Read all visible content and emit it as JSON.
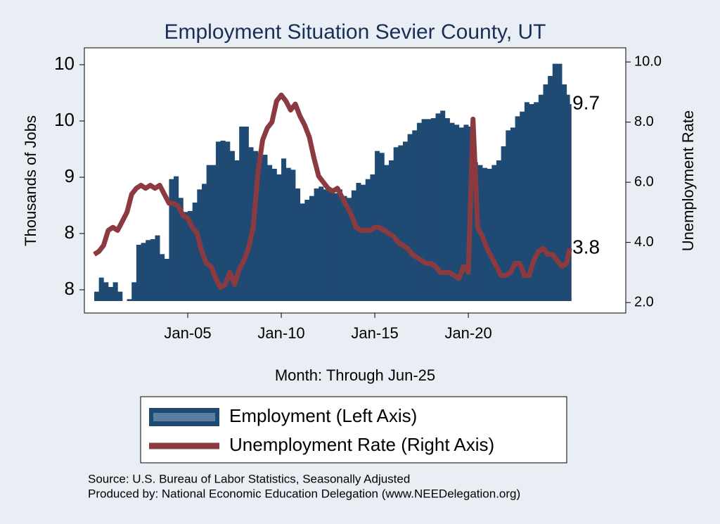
{
  "chart_data": {
    "type": "bar-line",
    "title": "Employment Situation Sevier  County, UT",
    "x_label": "Month: Through Jun-25",
    "y_label": "Thousands of Jobs",
    "y2_label": "Unemployment Rate",
    "notes": [
      "Source: U.S. Bureau of Labor Statistics, Seasonally Adjusted",
      "Produced by: National Economic Education Delegation (www.NEEDelegation.org)"
    ],
    "x": [
      "Jan-00",
      "Apr-00",
      "Jul-00",
      "Oct-00",
      "Jan-01",
      "Apr-01",
      "Jul-01",
      "Oct-01",
      "Jan-02",
      "Apr-02",
      "Jul-02",
      "Oct-02",
      "Jan-03",
      "Apr-03",
      "Jul-03",
      "Oct-03",
      "Jan-04",
      "Apr-04",
      "Jul-04",
      "Oct-04",
      "Jan-05",
      "Apr-05",
      "Jul-05",
      "Oct-05",
      "Jan-06",
      "Apr-06",
      "Jul-06",
      "Oct-06",
      "Jan-07",
      "Apr-07",
      "Jul-07",
      "Oct-07",
      "Jan-08",
      "Apr-08",
      "Jul-08",
      "Oct-08",
      "Jan-09",
      "Apr-09",
      "Jul-09",
      "Oct-09",
      "Jan-10",
      "Apr-10",
      "Jul-10",
      "Oct-10",
      "Jan-11",
      "Apr-11",
      "Jul-11",
      "Oct-11",
      "Jan-12",
      "Apr-12",
      "Jul-12",
      "Oct-12",
      "Jan-13",
      "Apr-13",
      "Jul-13",
      "Oct-13",
      "Jan-14",
      "Apr-14",
      "Jul-14",
      "Oct-14",
      "Jan-15",
      "Apr-15",
      "Jul-15",
      "Oct-15",
      "Jan-16",
      "Apr-16",
      "Jul-16",
      "Oct-16",
      "Jan-17",
      "Apr-17",
      "Jul-17",
      "Oct-17",
      "Jan-18",
      "Apr-18",
      "Jul-18",
      "Oct-18",
      "Jan-19",
      "Apr-19",
      "Jul-19",
      "Oct-19",
      "Jan-20",
      "Apr-20",
      "Jul-20",
      "Oct-20",
      "Jan-21",
      "Apr-21",
      "Jul-21",
      "Oct-21",
      "Jan-22",
      "Apr-22",
      "Jul-22",
      "Oct-22",
      "Jan-23",
      "Apr-23",
      "Jul-23",
      "Oct-23",
      "Jan-24",
      "Apr-24",
      "Jul-24",
      "Oct-24",
      "Jan-25",
      "Apr-25",
      "Jun-25"
    ],
    "xticks": [
      "Jan-05",
      "Jan-10",
      "Jan-15",
      "Jan-20"
    ],
    "ylim": [
      7.6,
      10.3
    ],
    "yticks": [
      {
        "value": 7.72,
        "label": "8"
      },
      {
        "value": 8.32,
        "label": "8"
      },
      {
        "value": 8.92,
        "label": "9"
      },
      {
        "value": 9.52,
        "label": "10"
      },
      {
        "value": 10.12,
        "label": "10"
      }
    ],
    "y2lim": [
      2.05,
      10.47
    ],
    "y2ticks": [
      {
        "value": 2,
        "label": "2.0"
      },
      {
        "value": 4,
        "label": "4.0"
      },
      {
        "value": 6,
        "label": "6.0"
      },
      {
        "value": 8,
        "label": "8.0"
      },
      {
        "value": 10,
        "label": "10.0"
      }
    ],
    "series": [
      {
        "name": "Employment (Left Axis)",
        "kind": "bar",
        "color": "#1f4a73",
        "values": [
          7.7,
          7.85,
          7.8,
          7.75,
          7.8,
          7.7,
          7.6,
          7.62,
          7.8,
          8.2,
          8.22,
          8.25,
          8.26,
          8.3,
          8.1,
          8.05,
          8.9,
          8.93,
          8.7,
          8.55,
          8.56,
          8.65,
          8.79,
          8.85,
          9.05,
          9.05,
          9.3,
          9.31,
          9.3,
          9.2,
          9.1,
          9.46,
          9.46,
          9.24,
          9.2,
          9.18,
          9.16,
          9.05,
          9.01,
          8.95,
          9.12,
          9.02,
          9.0,
          8.8,
          8.64,
          8.68,
          8.72,
          8.8,
          8.82,
          8.79,
          8.78,
          8.75,
          8.79,
          8.72,
          8.7,
          8.78,
          8.86,
          8.84,
          8.9,
          8.95,
          9.2,
          9.18,
          9.05,
          9.1,
          9.24,
          9.26,
          9.3,
          9.38,
          9.42,
          9.5,
          9.54,
          9.54,
          9.55,
          9.6,
          9.63,
          9.55,
          9.5,
          9.48,
          9.45,
          9.48,
          9.46,
          9.08,
          9.05,
          9.02,
          9.01,
          9.05,
          9.1,
          9.25,
          9.42,
          9.45,
          9.57,
          9.62,
          9.72,
          9.7,
          9.72,
          9.8,
          9.91,
          10.0,
          10.13,
          10.13,
          9.91,
          9.8,
          9.7
        ],
        "value_labels": [
          null,
          null,
          null,
          null,
          null,
          null,
          null,
          null,
          null,
          null,
          null,
          null,
          null,
          null,
          null,
          null,
          null,
          null,
          null,
          null,
          null,
          null,
          null,
          null,
          null,
          null,
          null,
          null,
          null,
          null,
          null,
          null,
          null,
          null,
          null,
          null,
          null,
          null,
          null,
          null,
          null,
          null,
          null,
          null,
          null,
          null,
          null,
          null,
          null,
          null,
          null,
          null,
          null,
          null,
          null,
          null,
          null,
          null,
          null,
          null,
          null,
          null,
          null,
          null,
          null,
          null,
          null,
          null,
          null,
          null,
          null,
          null,
          null,
          null,
          null,
          null,
          null,
          null,
          null,
          null,
          null,
          null,
          null,
          null,
          null,
          null,
          null,
          null,
          null,
          null,
          null,
          null,
          null,
          null,
          null,
          null,
          null,
          null,
          null,
          null,
          null,
          null,
          "9.7"
        ]
      },
      {
        "name": "Unemployment Rate (Right Axis)",
        "kind": "line",
        "axis": "y2",
        "color": "#8b3a40",
        "values": [
          3.6,
          3.7,
          3.9,
          4.4,
          4.5,
          4.4,
          4.7,
          5.0,
          5.6,
          5.8,
          5.9,
          5.8,
          5.9,
          5.8,
          5.9,
          5.6,
          5.3,
          5.3,
          5.2,
          4.9,
          4.8,
          4.5,
          4.3,
          3.7,
          3.3,
          3.2,
          2.8,
          2.5,
          2.6,
          3.0,
          2.6,
          3.1,
          3.4,
          3.8,
          4.5,
          6.3,
          7.4,
          7.8,
          8.0,
          8.7,
          8.9,
          8.7,
          8.4,
          8.6,
          8.2,
          7.9,
          7.5,
          6.8,
          6.2,
          6.0,
          5.8,
          5.7,
          5.8,
          5.5,
          5.2,
          4.9,
          4.5,
          4.4,
          4.4,
          4.4,
          4.5,
          4.5,
          4.4,
          4.3,
          4.2,
          4.0,
          3.9,
          3.8,
          3.6,
          3.5,
          3.4,
          3.3,
          3.3,
          3.2,
          3.0,
          3.0,
          3.0,
          2.9,
          2.8,
          3.2,
          3.0,
          8.1,
          4.5,
          4.2,
          3.8,
          3.5,
          3.2,
          2.9,
          2.9,
          3.0,
          3.3,
          3.3,
          2.9,
          2.9,
          3.4,
          3.7,
          3.8,
          3.6,
          3.6,
          3.4,
          3.2,
          3.3,
          3.8
        ],
        "value_labels": [
          null,
          null,
          null,
          null,
          null,
          null,
          null,
          null,
          null,
          null,
          null,
          null,
          null,
          null,
          null,
          null,
          null,
          null,
          null,
          null,
          null,
          null,
          null,
          null,
          null,
          null,
          null,
          null,
          null,
          null,
          null,
          null,
          null,
          null,
          null,
          null,
          null,
          null,
          null,
          null,
          null,
          null,
          null,
          null,
          null,
          null,
          null,
          null,
          null,
          null,
          null,
          null,
          null,
          null,
          null,
          null,
          null,
          null,
          null,
          null,
          null,
          null,
          null,
          null,
          null,
          null,
          null,
          null,
          null,
          null,
          null,
          null,
          null,
          null,
          null,
          null,
          null,
          null,
          null,
          null,
          null,
          null,
          null,
          null,
          null,
          null,
          null,
          null,
          null,
          null,
          null,
          null,
          null,
          null,
          null,
          null,
          null,
          null,
          null,
          null,
          null,
          null,
          "3.8"
        ]
      }
    ]
  }
}
